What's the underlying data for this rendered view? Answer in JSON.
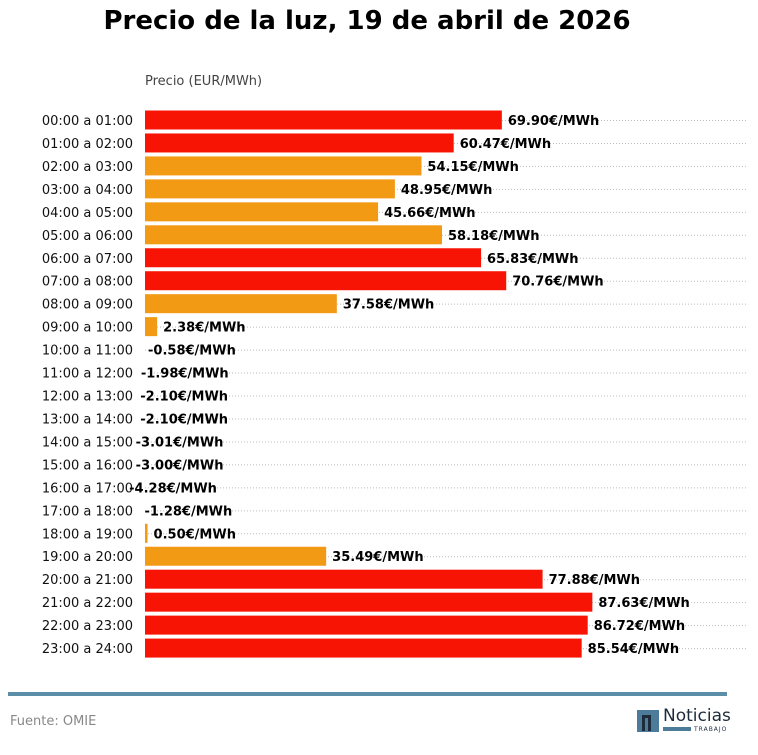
{
  "chart_data": {
    "type": "bar",
    "orientation": "horizontal",
    "title": "Precio de la luz, 19 de abril de 2026",
    "xlabel": "Precio (EUR/MWh)",
    "categories": [
      "00:00 a 01:00",
      "01:00 a 02:00",
      "02:00 a 03:00",
      "03:00 a 04:00",
      "04:00 a 05:00",
      "05:00 a 06:00",
      "06:00 a 07:00",
      "07:00 a 08:00",
      "08:00 a 09:00",
      "09:00 a 10:00",
      "10:00 a 11:00",
      "11:00 a 12:00",
      "12:00 a 13:00",
      "13:00 a 14:00",
      "14:00 a 15:00",
      "15:00 a 16:00",
      "16:00 a 17:00",
      "17:00 a 18:00",
      "18:00 a 19:00",
      "19:00 a 20:00",
      "20:00 a 21:00",
      "21:00 a 22:00",
      "22:00 a 23:00",
      "23:00 a 24:00"
    ],
    "values": [
      69.9,
      60.47,
      54.15,
      48.95,
      45.66,
      58.18,
      65.83,
      70.76,
      37.58,
      2.38,
      -0.58,
      -1.98,
      -2.1,
      -2.1,
      -3.01,
      -3.0,
      -4.28,
      -1.28,
      0.5,
      35.49,
      77.88,
      87.63,
      86.72,
      85.54
    ],
    "unit_suffix": "€/MWh",
    "colors": {
      "high": "#f81404",
      "medium": "#f29a14",
      "grid": "#bbbbbb"
    },
    "grid": true
  },
  "footer": {
    "source": "Fuente: OMIE",
    "logo_text": "Noticias",
    "logo_sub": "TRABAJO"
  }
}
